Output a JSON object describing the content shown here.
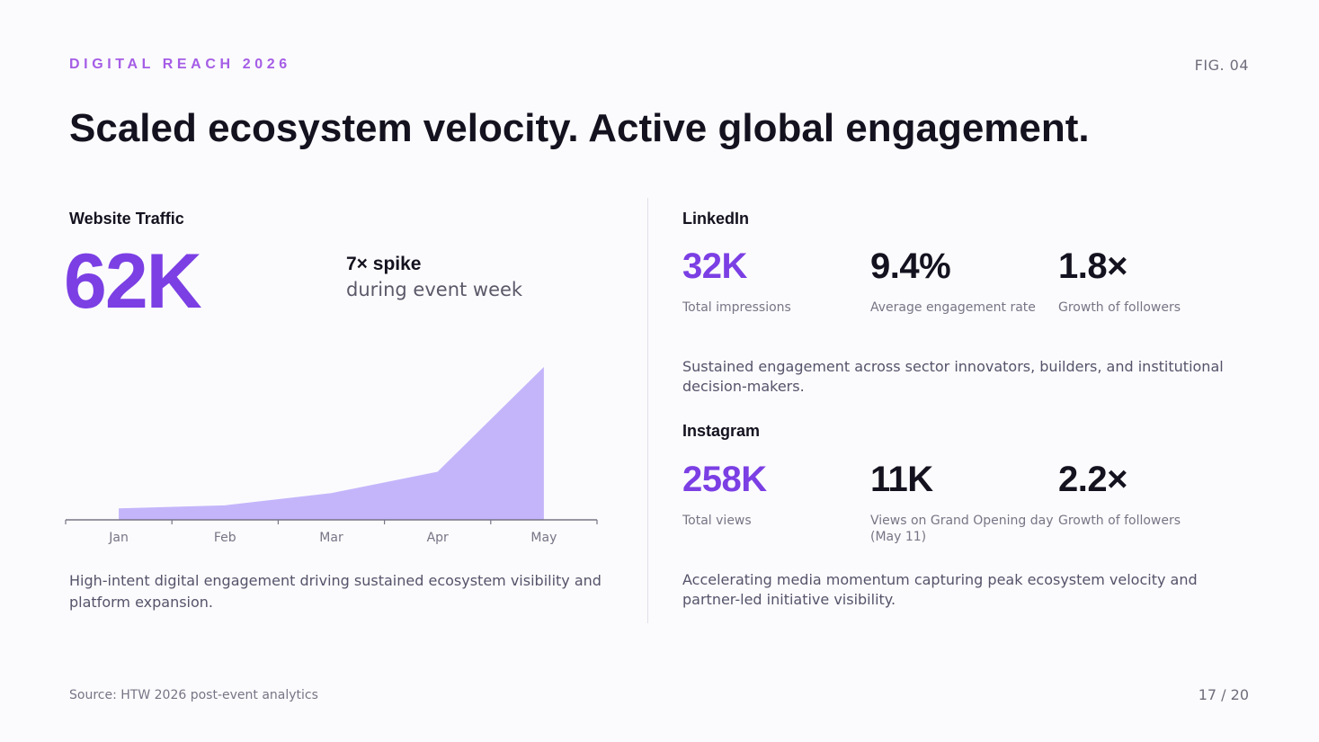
{
  "header": {
    "eyebrow": "DIGITAL REACH 2026",
    "fig": "FIG. 04",
    "title": "Scaled ecosystem velocity. Active global engagement."
  },
  "website": {
    "title": "Website Traffic",
    "big_value": "62K",
    "spike_head": "7× spike",
    "spike_sub": "during event week",
    "description": "High-intent digital engagement driving sustained ecosystem visibility and platform expansion."
  },
  "linkedin": {
    "title": "LinkedIn",
    "stats": [
      {
        "value": "32K",
        "label": "Total impressions"
      },
      {
        "value": "9.4%",
        "label": "Average engagement rate"
      },
      {
        "value": "1.8×",
        "label": "Growth of followers"
      }
    ],
    "description": "Sustained engagement across sector innovators, builders, and institutional decision-makers."
  },
  "instagram": {
    "title": "Instagram",
    "stats": [
      {
        "value": "258K",
        "label": "Total views"
      },
      {
        "value": "11K",
        "label": "Views on Grand Opening day (May 11)"
      },
      {
        "value": "2.2×",
        "label": "Growth of followers"
      }
    ],
    "description": "Accelerating media momentum capturing peak ecosystem velocity and partner-led initiative visibility."
  },
  "footer": {
    "source": "Source: HTW 2026 post-event analytics",
    "page": "17 / 20"
  },
  "colors": {
    "accent": "#7b3fe4",
    "area_fill": "#c4b5fb",
    "axis": "#777585"
  },
  "chart_data": {
    "type": "area",
    "categories": [
      "Jan",
      "Feb",
      "Mar",
      "Apr",
      "May"
    ],
    "values": [
      1.5,
      1.9,
      3.5,
      6.3,
      20
    ],
    "title": "",
    "xlabel": "",
    "ylabel": "",
    "ylim": [
      0,
      20
    ],
    "grid": false,
    "legend": "none"
  }
}
